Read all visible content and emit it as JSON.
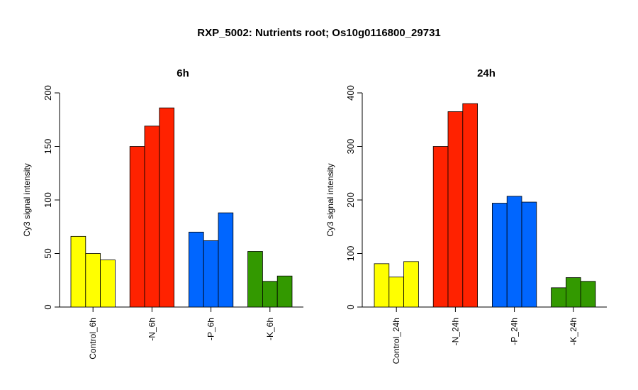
{
  "figure_title": "RXP_5002: Nutrients root; Os10g0116800_29731",
  "colors": {
    "control": "#ffff00",
    "N": "#ff2200",
    "P": "#0066ff",
    "K": "#339900"
  },
  "chart_data": [
    {
      "type": "bar",
      "title": "6h",
      "ylabel": "Cy3 signal intensity",
      "ylim": [
        0,
        200
      ],
      "yticks": [
        0,
        50,
        100,
        150,
        200
      ],
      "categories": [
        "Control_6h",
        "-N_6h",
        "-P_6h",
        "-K_6h"
      ],
      "groups": [
        {
          "category": "Control_6h",
          "color_key": "control",
          "values": [
            66,
            50,
            44
          ]
        },
        {
          "category": "-N_6h",
          "color_key": "N",
          "values": [
            150,
            169,
            186
          ]
        },
        {
          "category": "-P_6h",
          "color_key": "P",
          "values": [
            70,
            62,
            88
          ]
        },
        {
          "category": "-K_6h",
          "color_key": "K",
          "values": [
            52,
            24,
            29
          ]
        }
      ]
    },
    {
      "type": "bar",
      "title": "24h",
      "ylabel": "Cy3 signal intensity",
      "ylim": [
        0,
        400
      ],
      "yticks": [
        0,
        100,
        200,
        300,
        400
      ],
      "categories": [
        "Control_24h",
        "-N_24h",
        "-P_24h",
        "-K_24h"
      ],
      "groups": [
        {
          "category": "Control_24h",
          "color_key": "control",
          "values": [
            81,
            56,
            85
          ]
        },
        {
          "category": "-N_24h",
          "color_key": "N",
          "values": [
            300,
            365,
            380
          ]
        },
        {
          "category": "-P_24h",
          "color_key": "P",
          "values": [
            194,
            207,
            196
          ]
        },
        {
          "category": "-K_24h",
          "color_key": "K",
          "values": [
            36,
            55,
            48
          ]
        }
      ]
    }
  ]
}
